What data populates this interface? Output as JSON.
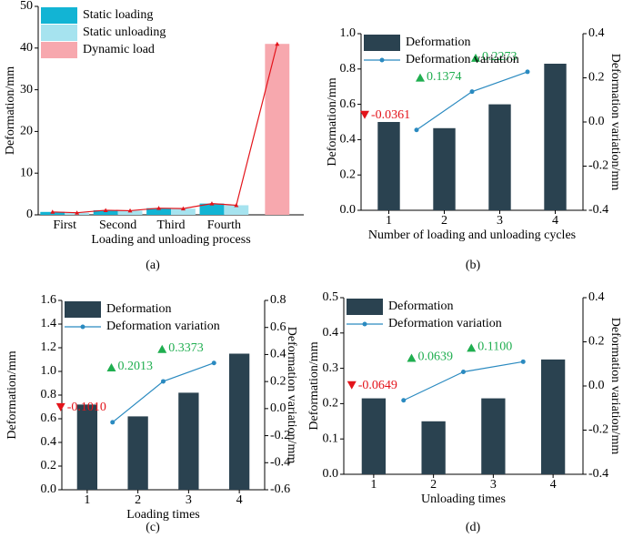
{
  "chart_data": [
    {
      "type": "bar",
      "caption": "(a)",
      "xlabel": "Loading and unloading process",
      "ylabel": "Deformation/mm",
      "categories": [
        "First",
        "Second",
        "Third",
        "Fourth",
        null
      ],
      "series": [
        {
          "name": "Static loading",
          "color": "#12b4d4",
          "values": [
            0.7,
            1.1,
            1.6,
            2.7,
            null
          ]
        },
        {
          "name": "Static unloading",
          "color": "#a6e3ef",
          "values": [
            0.5,
            1.0,
            1.5,
            2.3,
            null
          ]
        },
        {
          "name": "Dynamic load",
          "color": "#f7a8ae",
          "values": [
            null,
            null,
            null,
            null,
            41
          ]
        }
      ],
      "line_color": "#e3141b",
      "ylim": [
        0,
        50
      ],
      "yticks": [
        0,
        10,
        20,
        30,
        40,
        50
      ],
      "legend": "upper left"
    },
    {
      "type": "combo",
      "caption": "(b)",
      "xlabel": "Number of loading and unloading cycles",
      "ylabel": "Deformation/mm",
      "y2label": "Deformation variation/mm",
      "x": [
        1,
        2,
        3,
        4
      ],
      "xlim": [
        0.5,
        4.5
      ],
      "xticks": [
        1,
        2,
        3,
        4
      ],
      "series": [
        {
          "name": "Deformation",
          "color": "#2a4250",
          "values": [
            0.5,
            0.465,
            0.6,
            0.83
          ]
        },
        {
          "name": "Deformation variation",
          "color": "#2a8ac0",
          "axis": "y2",
          "x": [
            1.5,
            2.5,
            3.5
          ],
          "values": [
            -0.0361,
            0.1374,
            0.2273
          ],
          "value_labels": [
            "-0.0361",
            "0.1374",
            "0.2273"
          ]
        }
      ],
      "ylim": [
        0,
        1.0
      ],
      "yticks": [
        {
          "value": 0,
          "label": "0.0"
        },
        0.2,
        0.4,
        0.6,
        0.8,
        {
          "value": 1,
          "label": "1.0"
        }
      ],
      "y2lim": [
        -0.4,
        0.4
      ],
      "y2ticks": [
        -0.4,
        -0.2,
        {
          "value": 0,
          "label": "0.0"
        },
        0.2,
        0.4
      ],
      "legend": "upper left"
    },
    {
      "type": "combo",
      "caption": "(c)",
      "xlabel": "Loading times",
      "ylabel": "Deformation/mm",
      "y2label": "Deformation variation/mm",
      "x": [
        1,
        2,
        3,
        4
      ],
      "xlim": [
        0.5,
        4.5
      ],
      "xticks": [
        1,
        2,
        3,
        4
      ],
      "series": [
        {
          "name": "Deformation",
          "color": "#2a4250",
          "values": [
            0.72,
            0.62,
            0.82,
            1.15
          ]
        },
        {
          "name": "Deformation variation",
          "color": "#2a8ac0",
          "axis": "y2",
          "x": [
            1.5,
            2.5,
            3.5
          ],
          "values": [
            -0.101,
            0.2013,
            0.3373
          ],
          "value_labels": [
            "-0.1010",
            "0.2013",
            "0.3373"
          ]
        }
      ],
      "ylim": [
        0,
        1.6
      ],
      "yticks": [
        {
          "value": 0,
          "label": "0.0"
        },
        0.2,
        0.4,
        0.6,
        0.8,
        {
          "value": 1,
          "label": "1.0"
        },
        1.2,
        1.4,
        1.6
      ],
      "y2lim": [
        -0.6,
        0.8
      ],
      "y2ticks": [
        -0.6,
        -0.4,
        -0.2,
        {
          "value": 0,
          "label": "0.0"
        },
        0.2,
        0.4,
        0.6,
        0.8
      ],
      "legend": "upper left"
    },
    {
      "type": "combo",
      "caption": "(d)",
      "xlabel": "Unloading times",
      "ylabel": "Deformation/mm",
      "y2label": "Deformation variation/mm",
      "x": [
        1,
        2,
        3,
        4
      ],
      "xlim": [
        0.5,
        4.5
      ],
      "xticks": [
        1,
        2,
        3,
        4
      ],
      "series": [
        {
          "name": "Deformation",
          "color": "#2a4250",
          "values": [
            0.215,
            0.15,
            0.215,
            0.325
          ]
        },
        {
          "name": "Deformation variation",
          "color": "#2a8ac0",
          "axis": "y2",
          "x": [
            1.5,
            2.5,
            3.5
          ],
          "values": [
            -0.0649,
            0.0639,
            0.11
          ],
          "value_labels": [
            "-0.0649",
            "0.0639",
            "0.1100"
          ]
        }
      ],
      "ylim": [
        0,
        0.5
      ],
      "yticks": [
        {
          "value": 0,
          "label": "0.0"
        },
        0.1,
        0.2,
        0.3,
        0.4,
        0.5
      ],
      "y2lim": [
        -0.4,
        0.4
      ],
      "y2ticks": [
        -0.4,
        -0.2,
        {
          "value": 0,
          "label": "0.0"
        },
        0.2,
        0.4
      ],
      "legend": "upper left"
    }
  ]
}
